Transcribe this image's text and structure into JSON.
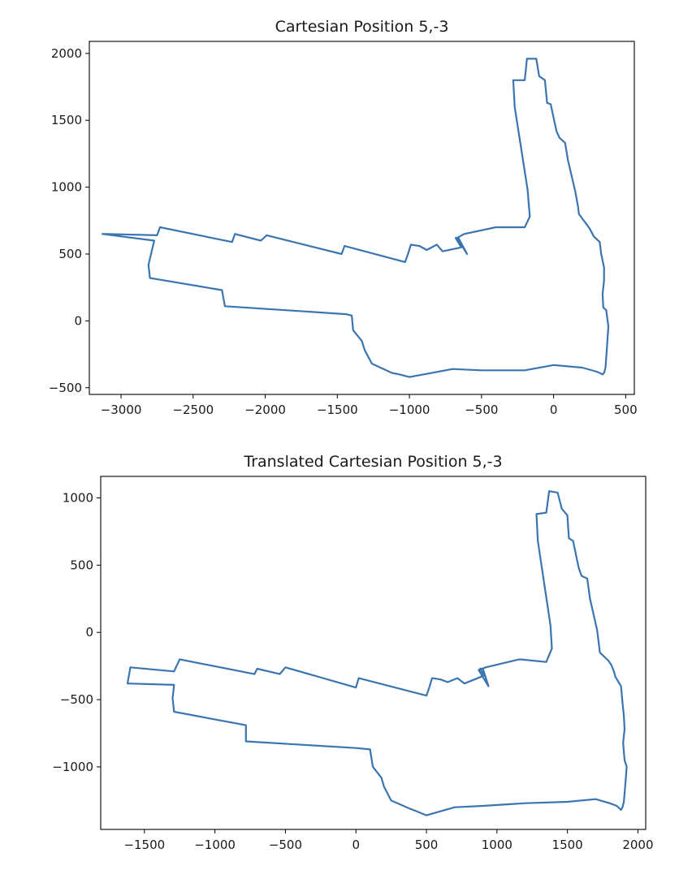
{
  "chart_data": [
    {
      "type": "line",
      "title": "Cartesian Position 5,-3",
      "xlabel": "",
      "ylabel": "",
      "xlim": [
        -3220,
        560
      ],
      "ylim": [
        -550,
        2090
      ],
      "xticks": [
        -3000,
        -2500,
        -2000,
        -1500,
        -1000,
        -500,
        0,
        500
      ],
      "yticks": [
        -500,
        0,
        500,
        1000,
        1500,
        2000
      ],
      "xtick_labels": [
        "−3000",
        "−2500",
        "−2000",
        "−1500",
        "−1000",
        "−500",
        "0",
        "500"
      ],
      "ytick_labels": [
        "−500",
        "0",
        "500",
        "1000",
        "1500",
        "2000"
      ],
      "grid": false,
      "color": "#3b75af",
      "series": [
        {
          "x": [
            -600,
            -670,
            -620,
            -400,
            -200,
            -165,
            -180,
            -270,
            -280,
            -200,
            -185,
            -120,
            -100,
            -60,
            -45,
            -20,
            20,
            40,
            80,
            100,
            150,
            170,
            175,
            230,
            250,
            270,
            280,
            320,
            330,
            350,
            350,
            340,
            345,
            365,
            380,
            370,
            360,
            350,
            340,
            300,
            200,
            0,
            -200,
            -500,
            -700,
            -1000,
            -1070,
            -1120,
            -1260,
            -1310,
            -1330,
            -1390,
            -1400,
            -1440,
            -2280,
            -2300,
            -2800,
            -2810,
            -2770,
            -3130,
            -3100,
            -2750,
            -2730,
            -2230,
            -2210,
            -2030,
            -1990,
            -1470,
            -1450,
            -1030,
            -1010,
            -990,
            -930,
            -880,
            -810,
            -770,
            -640,
            -680,
            -660
          ],
          "y": [
            500,
            620,
            650,
            700,
            700,
            780,
            980,
            1600,
            1800,
            1800,
            1960,
            1960,
            1830,
            1800,
            1630,
            1620,
            1420,
            1370,
            1330,
            1200,
            970,
            850,
            800,
            720,
            690,
            650,
            630,
            590,
            500,
            400,
            300,
            200,
            100,
            80,
            -40,
            -200,
            -350,
            -390,
            -400,
            -380,
            -350,
            -330,
            -370,
            -370,
            -360,
            -420,
            -400,
            -390,
            -320,
            -220,
            -150,
            -70,
            40,
            50,
            110,
            230,
            320,
            420,
            600,
            650,
            650,
            640,
            700,
            590,
            650,
            600,
            640,
            500,
            560,
            440,
            500,
            570,
            560,
            530,
            570,
            520,
            550,
            620,
            620
          ]
        }
      ]
    },
    {
      "type": "line",
      "title": "Translated Cartesian Position 5,-3",
      "xlabel": "",
      "ylabel": "",
      "xlim": [
        -1810,
        2055
      ],
      "ylim": [
        -1465,
        1160
      ],
      "xticks": [
        -1500,
        -1000,
        -500,
        0,
        500,
        1000,
        1500,
        2000
      ],
      "yticks": [
        -1000,
        -500,
        0,
        500,
        1000
      ],
      "xtick_labels": [
        "−1500",
        "−1000",
        "−500",
        "0",
        "500",
        "1000",
        "1500",
        "2000"
      ],
      "ytick_labels": [
        "−1000",
        "−500",
        "0",
        "500",
        "1000"
      ],
      "grid": false,
      "color": "#3b75af",
      "series": [
        {
          "x": [
            940,
            870,
            920,
            1160,
            1350,
            1390,
            1380,
            1290,
            1280,
            1350,
            1370,
            1430,
            1460,
            1500,
            1510,
            1540,
            1580,
            1600,
            1640,
            1660,
            1710,
            1720,
            1730,
            1790,
            1810,
            1830,
            1840,
            1880,
            1890,
            1900,
            1905,
            1895,
            1905,
            1920,
            1910,
            1900,
            1890,
            1880,
            1850,
            1800,
            1700,
            1500,
            1200,
            900,
            700,
            500,
            430,
            380,
            250,
            200,
            180,
            120,
            100,
            0,
            -780,
            -780,
            -1290,
            -1300,
            -1290,
            -1620,
            -1600,
            -1290,
            -1250,
            -720,
            -700,
            -540,
            -500,
            0,
            20,
            500,
            520,
            540,
            600,
            650,
            720,
            770,
            910,
            880,
            900
          ],
          "y": [
            -400,
            -280,
            -260,
            -200,
            -220,
            -120,
            50,
            680,
            880,
            890,
            1050,
            1040,
            920,
            870,
            700,
            680,
            480,
            420,
            400,
            250,
            20,
            -60,
            -150,
            -210,
            -240,
            -290,
            -330,
            -400,
            -520,
            -620,
            -720,
            -820,
            -950,
            -1000,
            -1140,
            -1260,
            -1300,
            -1320,
            -1290,
            -1270,
            -1240,
            -1260,
            -1270,
            -1290,
            -1300,
            -1360,
            -1330,
            -1310,
            -1250,
            -1150,
            -1080,
            -1000,
            -870,
            -860,
            -810,
            -690,
            -590,
            -490,
            -390,
            -380,
            -260,
            -290,
            -200,
            -310,
            -270,
            -310,
            -260,
            -410,
            -340,
            -470,
            -410,
            -340,
            -350,
            -370,
            -340,
            -380,
            -320,
            -270,
            -270
          ]
        }
      ]
    }
  ]
}
